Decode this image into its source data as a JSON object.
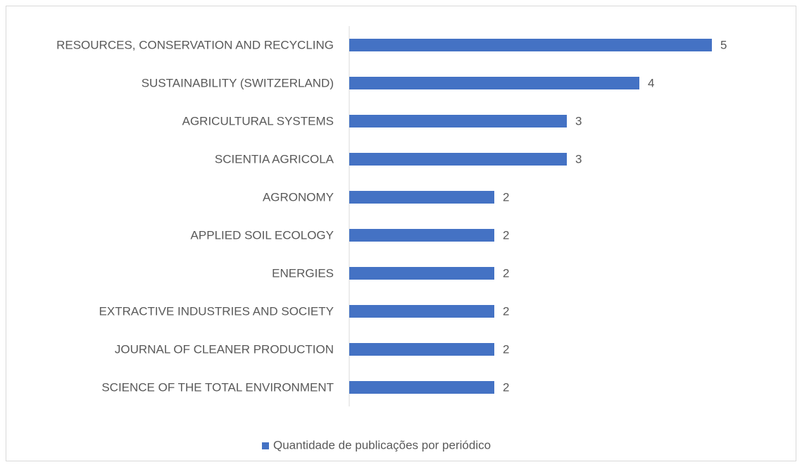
{
  "chart_data": {
    "type": "bar",
    "orientation": "horizontal",
    "categories": [
      "RESOURCES, CONSERVATION AND RECYCLING",
      "SUSTAINABILITY (SWITZERLAND)",
      "AGRICULTURAL SYSTEMS",
      "SCIENTIA AGRICOLA",
      "AGRONOMY",
      "APPLIED SOIL ECOLOGY",
      "ENERGIES",
      "EXTRACTIVE INDUSTRIES AND SOCIETY",
      "JOURNAL OF CLEANER PRODUCTION",
      "SCIENCE OF THE TOTAL ENVIRONMENT"
    ],
    "series": [
      {
        "name": "Quantidade de publicações por periódico",
        "color": "#4472c4",
        "values": [
          5,
          4,
          3,
          3,
          2,
          2,
          2,
          2,
          2,
          2
        ]
      }
    ],
    "xlim": [
      0,
      5
    ],
    "legend": "bottom"
  }
}
